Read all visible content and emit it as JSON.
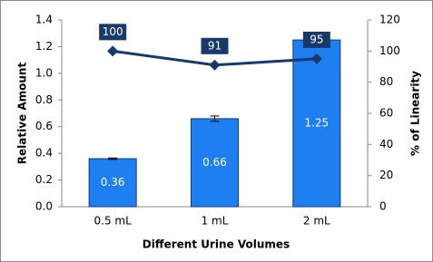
{
  "chart_data": {
    "type": "bar",
    "categories": [
      "0.5 mL",
      "1 mL",
      "2 mL"
    ],
    "x_label": "Different Urine Volumes",
    "y_label": "Relative Amount",
    "y2_label": "% of Linearity",
    "ylim": [
      0,
      1.4
    ],
    "yticks": [
      {
        "value": 0,
        "label": "0.0"
      },
      0.2,
      0.4,
      0.6,
      0.8,
      {
        "value": 1,
        "label": "1.0"
      },
      1.2,
      1.4
    ],
    "y2lim": [
      0,
      120
    ],
    "y2ticks": [
      0,
      20,
      40,
      60,
      80,
      100,
      120
    ],
    "grid": false,
    "series": [
      {
        "type": "bar",
        "color": "#1e7ff0",
        "values": [
          0.36,
          0.66,
          1.25
        ],
        "errors": [
          0.005,
          0.02,
          0.01
        ]
      },
      {
        "type": "line",
        "axis": "y2",
        "color": "#173a6b",
        "values": [
          100,
          91,
          95
        ]
      }
    ]
  }
}
